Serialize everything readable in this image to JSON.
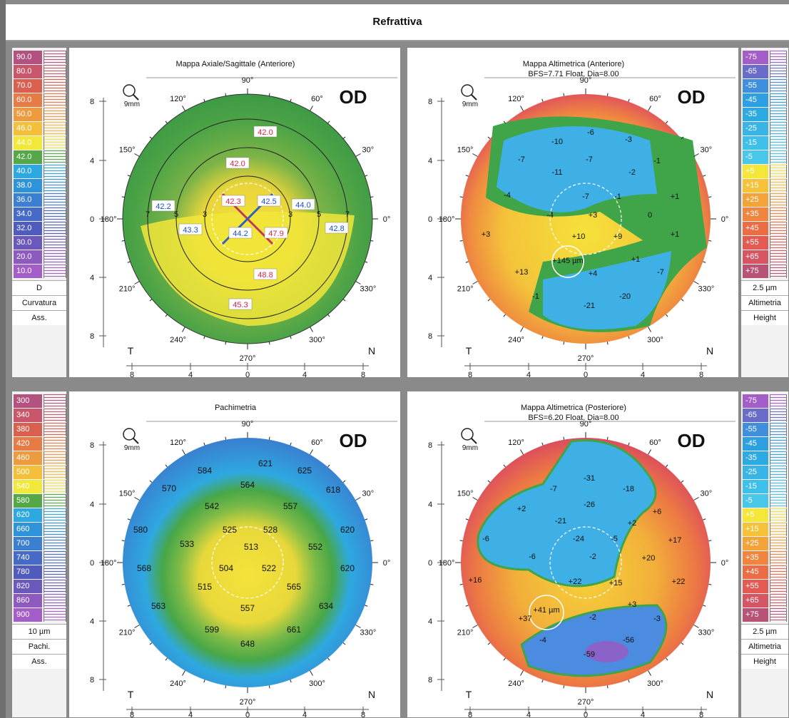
{
  "title": "Refrattiva",
  "scales": {
    "curv": {
      "items": [
        {
          "label": "90.0",
          "color": "#b3527f"
        },
        {
          "label": "80.0",
          "color": "#c9566a"
        },
        {
          "label": "70.0",
          "color": "#d9604f"
        },
        {
          "label": "60.0",
          "color": "#e77b46"
        },
        {
          "label": "50.0",
          "color": "#ee9a3f"
        },
        {
          "label": "46.0",
          "color": "#f4c03c"
        },
        {
          "label": "44.0",
          "color": "#f2e83a"
        },
        {
          "label": "42.0",
          "color": "#55a747"
        },
        {
          "label": "40.0",
          "color": "#2ea8e0"
        },
        {
          "label": "38.0",
          "color": "#2e93d8"
        },
        {
          "label": "36.0",
          "color": "#3b7fd1"
        },
        {
          "label": "34.0",
          "color": "#466bc7"
        },
        {
          "label": "32.0",
          "color": "#4f5cbd"
        },
        {
          "label": "30.0",
          "color": "#6a58bd"
        },
        {
          "label": "20.0",
          "color": "#8d5ac0"
        },
        {
          "label": "10.0",
          "color": "#a45ec7"
        }
      ],
      "unit": "D",
      "cap1": "Curvatura",
      "cap2": "Ass."
    },
    "pach": {
      "items": [
        {
          "label": "300",
          "color": "#b3527f"
        },
        {
          "label": "340",
          "color": "#c9566a"
        },
        {
          "label": "380",
          "color": "#d9604f"
        },
        {
          "label": "420",
          "color": "#e77b46"
        },
        {
          "label": "460",
          "color": "#ee9a3f"
        },
        {
          "label": "500",
          "color": "#f4c03c"
        },
        {
          "label": "540",
          "color": "#f2e83a"
        },
        {
          "label": "580",
          "color": "#55a747"
        },
        {
          "label": "620",
          "color": "#2ea8e0"
        },
        {
          "label": "660",
          "color": "#2e93d8"
        },
        {
          "label": "700",
          "color": "#3b7fd1"
        },
        {
          "label": "740",
          "color": "#466bc7"
        },
        {
          "label": "780",
          "color": "#4f5cbd"
        },
        {
          "label": "820",
          "color": "#6a58bd"
        },
        {
          "label": "860",
          "color": "#8d5ac0"
        },
        {
          "label": "900",
          "color": "#a45ec7"
        }
      ],
      "unit": "10 µm",
      "cap1": "Pachi.",
      "cap2": "Ass."
    },
    "alt1": {
      "items": [
        {
          "label": "-75",
          "color": "#a45ec7"
        },
        {
          "label": "-65",
          "color": "#6a6cc9"
        },
        {
          "label": "-55",
          "color": "#3f8fdc"
        },
        {
          "label": "-45",
          "color": "#2ea0e2"
        },
        {
          "label": "-35",
          "color": "#2eaae3"
        },
        {
          "label": "-25",
          "color": "#3ab3e6"
        },
        {
          "label": "-15",
          "color": "#3ec0ea"
        },
        {
          "label": "-5",
          "color": "#49c7ea"
        },
        {
          "label": "+5",
          "color": "#f5e63a"
        },
        {
          "label": "+15",
          "color": "#f5c23a"
        },
        {
          "label": "+25",
          "color": "#f2a33a"
        },
        {
          "label": "+35",
          "color": "#ef853f"
        },
        {
          "label": "+45",
          "color": "#ea6d45"
        },
        {
          "label": "+55",
          "color": "#e35a53"
        },
        {
          "label": "+65",
          "color": "#d65563"
        },
        {
          "label": "+75",
          "color": "#b85276"
        }
      ],
      "unit": "2.5 µm",
      "cap1": "Altimetria",
      "cap2": "Height"
    },
    "alt2": {
      "items": [
        {
          "label": "-75",
          "color": "#a45ec7"
        },
        {
          "label": "-65",
          "color": "#6a6cc9"
        },
        {
          "label": "-55",
          "color": "#3f8fdc"
        },
        {
          "label": "-45",
          "color": "#2ea0e2"
        },
        {
          "label": "-35",
          "color": "#2eaae3"
        },
        {
          "label": "-25",
          "color": "#3ab3e6"
        },
        {
          "label": "-15",
          "color": "#3ec0ea"
        },
        {
          "label": "-5",
          "color": "#49c7ea"
        },
        {
          "label": "+5",
          "color": "#f5e63a"
        },
        {
          "label": "+15",
          "color": "#f5c23a"
        },
        {
          "label": "+25",
          "color": "#f2a33a"
        },
        {
          "label": "+35",
          "color": "#ef853f"
        },
        {
          "label": "+45",
          "color": "#ea6d45"
        },
        {
          "label": "+55",
          "color": "#e35a53"
        },
        {
          "label": "+65",
          "color": "#d65563"
        },
        {
          "label": "+75",
          "color": "#b85276"
        }
      ],
      "unit": "2.5 µm",
      "cap1": "Altimetria",
      "cap2": "Height"
    }
  },
  "common": {
    "od": "OD",
    "zoom": "9mm",
    "t": "T",
    "n": "N",
    "angles": {
      "a90": "90°",
      "a120": "120°",
      "a60": "60°",
      "a150": "150°",
      "a30": "30°",
      "a180": "180°",
      "a0": "0°",
      "a210": "210°",
      "a330": "330°",
      "a240": "240°",
      "a300": "300°",
      "a270": "270°"
    },
    "yticks": [
      "8",
      "4",
      "0",
      "4",
      "8"
    ],
    "xticks": [
      "8",
      "4",
      "0",
      "4",
      "8"
    ]
  },
  "panels": {
    "axial": {
      "title": "Mappa Axiale/Sagittale (Anteriore)",
      "ring_labels": [
        "3",
        "5",
        "7",
        "3",
        "5",
        "7"
      ],
      "values": [
        {
          "t": "42.0",
          "c": "red"
        },
        {
          "t": "42.0",
          "c": "red"
        },
        {
          "t": "42.3",
          "c": "red"
        },
        {
          "t": "42.5",
          "c": "blue"
        },
        {
          "t": "44.0",
          "c": "blue"
        },
        {
          "t": "42.2",
          "c": "blue"
        },
        {
          "t": "43.3",
          "c": "blue"
        },
        {
          "t": "44.2",
          "c": "blue"
        },
        {
          "t": "47.9",
          "c": "red"
        },
        {
          "t": "42.8",
          "c": "blue"
        },
        {
          "t": "48.8",
          "c": "red"
        },
        {
          "t": "45.3",
          "c": "red"
        }
      ]
    },
    "altant": {
      "title": "Mappa Altimetrica (Anteriore)",
      "subtitle": "BFS=7.71 Float, Dia=8.00",
      "values": [
        "-10",
        "-6",
        "-3",
        "-7",
        "-7",
        "-11",
        "-2",
        "-1",
        "-4",
        "-7",
        "-1",
        "+1",
        "-4",
        "+3",
        "0",
        "+3",
        "+10",
        "+9",
        "+1",
        "+145 µm",
        "+13",
        "+1",
        "+4",
        "-7",
        "-1",
        "-20",
        "-21"
      ]
    },
    "pachi": {
      "title": "Pachimetria",
      "values": [
        "621",
        "584",
        "625",
        "570",
        "564",
        "618",
        "542",
        "557",
        "580",
        "525",
        "528",
        "620",
        "533",
        "513",
        "552",
        "568",
        "504",
        "522",
        "620",
        "515",
        "565",
        "563",
        "557",
        "634",
        "599",
        "661",
        "648"
      ]
    },
    "altpost": {
      "title": "Mappa Altimetrica (Posteriore)",
      "subtitle": "BFS=6.20 Float, Dia=8.00",
      "values": [
        "-31",
        "-7",
        "-18",
        "-26",
        "+2",
        "-21",
        "+6",
        "+2",
        "-6",
        "-24",
        "-5",
        "+17",
        "-6",
        "-2",
        "+20",
        "+16",
        "+22",
        "+15",
        "+22",
        "+41 µm",
        "+37",
        "+3",
        "-3",
        "-2",
        "-4",
        "-59",
        "-56"
      ]
    }
  }
}
